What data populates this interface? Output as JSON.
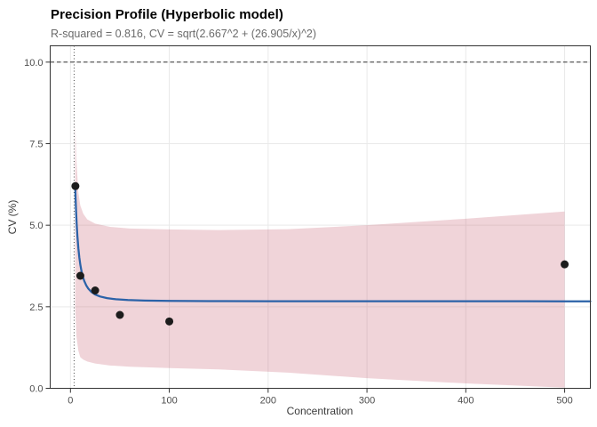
{
  "header": {
    "title": "Precision Profile (Hyperbolic model)",
    "subtitle": "R-squared = 0.816, CV = sqrt(2.667^2 + (26.905/x)^2)"
  },
  "chart_data": {
    "type": "scatter",
    "title": "Precision Profile (Hyperbolic model)",
    "subtitle": "R-squared = 0.816, CV = sqrt(2.667^2 + (26.905/x)^2)",
    "xlabel": "Concentration",
    "ylabel": "CV (%)",
    "xlim": [
      -20.5,
      526
    ],
    "ylim": [
      0,
      10.5
    ],
    "xticks": [
      0,
      100,
      200,
      300,
      400,
      500
    ],
    "xtick_labels": [
      "0",
      "100",
      "200",
      "300",
      "400",
      "500"
    ],
    "yticks": [
      0,
      2.5,
      5,
      7.5,
      10
    ],
    "ytick_labels": [
      "0.0",
      "2.5",
      "5.0",
      "7.5",
      "10.0"
    ],
    "grid": "major-only",
    "legend": "none",
    "points": [
      {
        "x": 5,
        "y": 6.2
      },
      {
        "x": 10,
        "y": 3.45
      },
      {
        "x": 25,
        "y": 3.0
      },
      {
        "x": 50,
        "y": 2.25
      },
      {
        "x": 100,
        "y": 2.05
      },
      {
        "x": 500,
        "y": 3.8
      }
    ],
    "fit": {
      "model": "CV = sqrt(a^2 + (b/x)^2)",
      "a": 2.667,
      "b": 26.905,
      "r_squared": 0.816,
      "sample_x": [
        4.8,
        5.2,
        5.7,
        6.3,
        7,
        8,
        9,
        10,
        11,
        12.5,
        14,
        16,
        18,
        21,
        25,
        30,
        37,
        46,
        58,
        75,
        100,
        140,
        200,
        280,
        380,
        460,
        526
      ]
    },
    "ribbon": {
      "x": [
        4.8,
        6,
        8,
        10,
        13,
        17,
        25,
        40,
        60,
        100,
        150,
        220,
        300,
        400,
        500
      ],
      "upper": [
        8.2,
        7.0,
        6.0,
        5.6,
        5.35,
        5.18,
        5.05,
        4.95,
        4.9,
        4.87,
        4.85,
        4.88,
        5.0,
        5.2,
        5.42
      ],
      "lower": [
        2.5,
        1.6,
        1.15,
        0.95,
        0.88,
        0.82,
        0.76,
        0.7,
        0.66,
        0.62,
        0.58,
        0.48,
        0.31,
        0.15,
        0.02
      ]
    },
    "reference_lines": {
      "h_dashed_y": 10,
      "v_dotted_x": 3.7
    }
  },
  "colors": {
    "title": "#000000",
    "subtitle": "#6b6b6b",
    "axis_text": "#4d4d4d",
    "axis_title": "#3a3a3a",
    "grid": "#e9e9e9",
    "panel_border": "#333333",
    "panel_bg": "#ffffff",
    "tick": "#333333",
    "ribbon_fill": "rgba(197,90,110,0.26)",
    "fit_line": "#2b62a8",
    "point": "#1c1c1c",
    "ref_line": "#4a4a4a"
  },
  "icons": {}
}
